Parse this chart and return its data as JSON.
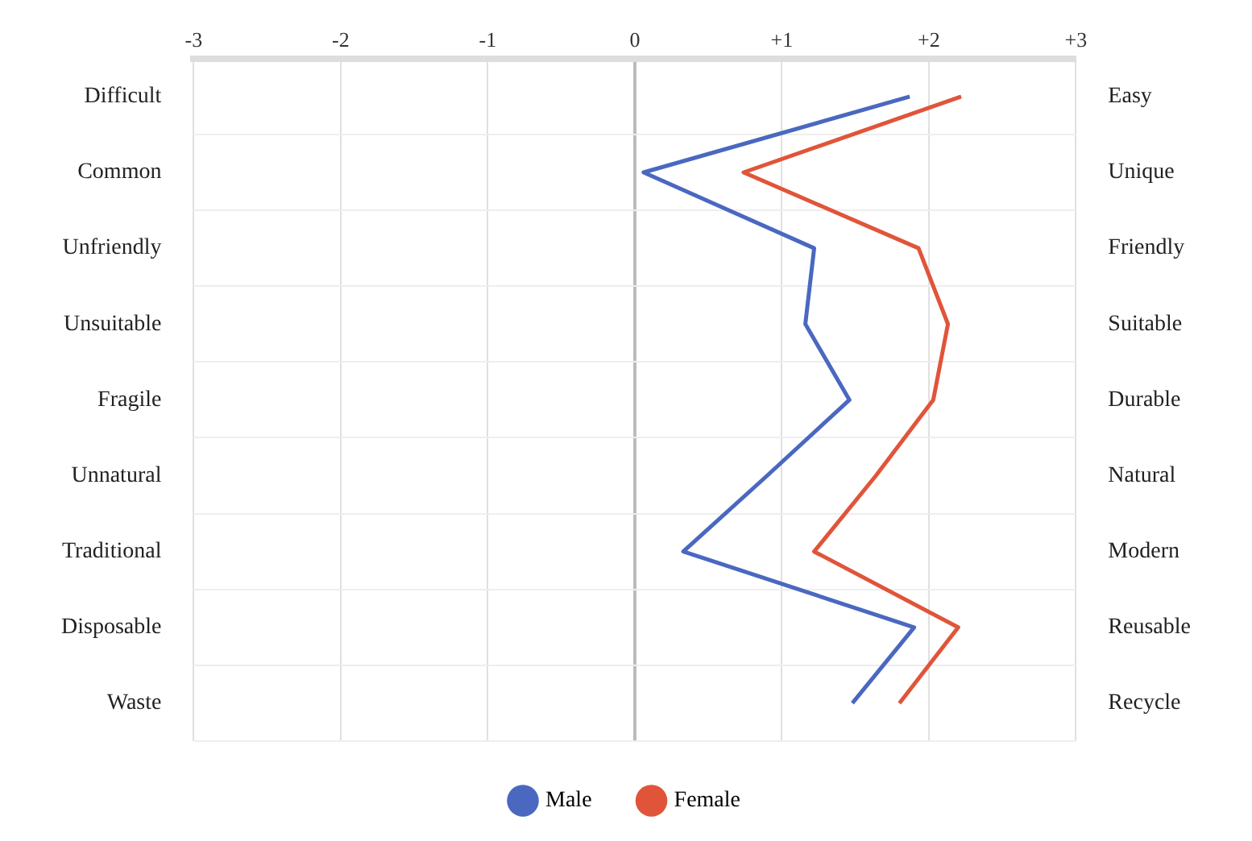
{
  "chart_data": {
    "type": "line",
    "orientation": "horizontal",
    "categories": [
      "Difficult",
      "Common",
      "Unfriendly",
      "Unsuitable",
      "Fragile",
      "Unnatural",
      "Traditional",
      "Disposable",
      "Waste"
    ],
    "y2_categories": [
      "Easy",
      "Unique",
      "Friendly",
      "Suitable",
      "Durable",
      "Natural",
      "Modern",
      "Reusable",
      "Recycle"
    ],
    "series": [
      {
        "name": "Male",
        "color": "#4a68c0",
        "values": [
          1.87,
          0.06,
          1.22,
          1.16,
          1.46,
          0.9,
          0.33,
          1.9,
          1.48
        ]
      },
      {
        "name": "Female",
        "color": "#e0553a",
        "values": [
          2.22,
          0.74,
          1.93,
          2.13,
          2.03,
          1.64,
          1.22,
          2.2,
          1.8
        ]
      }
    ],
    "xlim": [
      -3,
      3
    ],
    "xticks": [
      -3,
      -2,
      -1,
      0,
      {
        "value": 1,
        "label": "+1"
      },
      {
        "value": 2,
        "label": "+2"
      },
      {
        "value": 3,
        "label": "+3"
      }
    ],
    "grid": true,
    "legend": "bottom",
    "marker": "none",
    "line_style": "solid"
  }
}
